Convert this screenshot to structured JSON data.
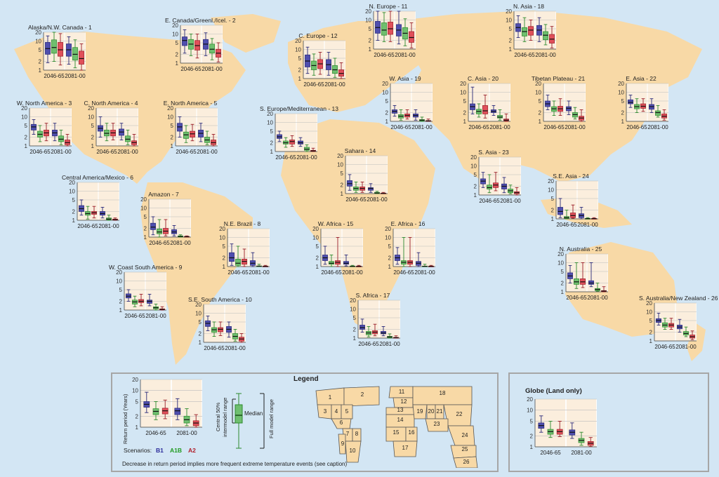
{
  "colors": {
    "B1": "#4f4fae",
    "A1B": "#6fbf6f",
    "A2": "#e0505a",
    "B1_line": "#2a2a7a",
    "A1B_line": "#2e8a2e",
    "A2_line": "#9a1e28",
    "land": "#f8d9a6",
    "sea": "#d3e6f4",
    "band": "#fbeedd"
  },
  "y_ticks": [
    "20",
    "10",
    "5",
    "2",
    "1"
  ],
  "periods": [
    "2046-65",
    "2081-00"
  ],
  "regions": [
    {
      "id": 1,
      "name": "Alaska/N.W. Canada - 1",
      "boxes": [
        [
          1.8,
          3.5,
          5.5,
          9,
          15
        ],
        [
          2,
          3.8,
          6,
          11,
          20
        ],
        [
          1.5,
          3,
          5,
          9,
          18
        ],
        [
          1.6,
          3,
          5,
          8,
          14
        ],
        [
          1.2,
          2.2,
          3.5,
          6,
          11
        ],
        [
          1,
          1.6,
          2.5,
          4.5,
          8
        ]
      ]
    },
    {
      "id": 2,
      "name": "E. Canada/Greenl./Icel. - 2",
      "boxes": [
        [
          2.2,
          4,
          6,
          8,
          14
        ],
        [
          1.8,
          3,
          4.5,
          6.5,
          10
        ],
        [
          1.5,
          2.8,
          4,
          6,
          10
        ],
        [
          1.8,
          3,
          4.5,
          6.5,
          11
        ],
        [
          1.3,
          2.2,
          3,
          4.5,
          7
        ],
        [
          1.1,
          1.6,
          2.2,
          3,
          5
        ]
      ]
    },
    {
      "id": 3,
      "name": "W. North America - 3",
      "boxes": [
        [
          2.5,
          3.5,
          4.5,
          5.5,
          8
        ],
        [
          1.4,
          2,
          2.5,
          3.2,
          5
        ],
        [
          1.5,
          2.2,
          2.8,
          3.5,
          6
        ],
        [
          1.5,
          2.2,
          2.8,
          3.5,
          6
        ],
        [
          1.1,
          1.4,
          1.7,
          2.2,
          3.5
        ],
        [
          1,
          1.1,
          1.3,
          1.6,
          2.5
        ]
      ]
    },
    {
      "id": 4,
      "name": "C. North America - 4",
      "boxes": [
        [
          2,
          3.2,
          4,
          5,
          10
        ],
        [
          1.5,
          2.2,
          2.7,
          3.5,
          6
        ],
        [
          1.6,
          2.2,
          2.8,
          3.5,
          6
        ],
        [
          1.6,
          2.3,
          3,
          3.8,
          6
        ],
        [
          1.1,
          1.4,
          1.7,
          2.2,
          3.5
        ],
        [
          1,
          1.1,
          1.3,
          1.5,
          2.5
        ]
      ]
    },
    {
      "id": 5,
      "name": "E. North America - 5",
      "boxes": [
        [
          2,
          3.2,
          4.5,
          6,
          10
        ],
        [
          1.3,
          1.8,
          2.4,
          3,
          5
        ],
        [
          1.5,
          2,
          2.6,
          3.2,
          5.5
        ],
        [
          1.4,
          2,
          2.7,
          3.5,
          6
        ],
        [
          1.1,
          1.3,
          1.6,
          2,
          3.2
        ],
        [
          1,
          1.1,
          1.3,
          1.6,
          2.5
        ]
      ]
    },
    {
      "id": 6,
      "name": "Central America/Mexico - 6",
      "boxes": [
        [
          1.5,
          2,
          2.5,
          3.2,
          5
        ],
        [
          1.1,
          1.5,
          1.7,
          2,
          3
        ],
        [
          1.2,
          1.6,
          1.8,
          2,
          3
        ],
        [
          1.2,
          1.5,
          1.7,
          2,
          2.8
        ],
        [
          1,
          1.05,
          1.1,
          1.2,
          1.5
        ],
        [
          1,
          1.02,
          1.05,
          1.1,
          1.2
        ]
      ]
    },
    {
      "id": 7,
      "name": "Amazon - 7",
      "boxes": [
        [
          1.2,
          1.8,
          2.2,
          3,
          5
        ],
        [
          1,
          1.3,
          1.5,
          1.9,
          4
        ],
        [
          1.1,
          1.3,
          1.6,
          2,
          4
        ],
        [
          1.1,
          1.3,
          1.5,
          1.8,
          2.5
        ],
        [
          1,
          1.02,
          1.05,
          1.1,
          1.2
        ],
        [
          1,
          1.01,
          1.03,
          1.05,
          1.1
        ]
      ]
    },
    {
      "id": 8,
      "name": "N.E. Brazil - 8",
      "boxes": [
        [
          1.1,
          1.5,
          2,
          3,
          6
        ],
        [
          1,
          1.1,
          1.3,
          1.8,
          5
        ],
        [
          1,
          1.2,
          1.5,
          1.8,
          4
        ],
        [
          1,
          1.1,
          1.3,
          1.6,
          3
        ],
        [
          1,
          1.01,
          1.03,
          1.05,
          1.2
        ],
        [
          1,
          1.01,
          1.02,
          1.03,
          1.1
        ]
      ]
    },
    {
      "id": 9,
      "name": "W. Coast South America - 9",
      "boxes": [
        [
          2,
          2.6,
          3,
          3.6,
          5
        ],
        [
          1.3,
          1.6,
          1.9,
          2.2,
          3
        ],
        [
          1.4,
          1.8,
          2,
          2.3,
          3.5
        ],
        [
          1.4,
          1.7,
          2,
          2.2,
          3.5
        ],
        [
          1,
          1.1,
          1.2,
          1.3,
          1.6
        ],
        [
          1,
          1.02,
          1.05,
          1.1,
          1.3
        ]
      ]
    },
    {
      "id": 10,
      "name": "S.E. South America - 10",
      "boxes": [
        [
          2.5,
          3.5,
          4.5,
          5.5,
          8
        ],
        [
          1.6,
          2.2,
          2.7,
          3.2,
          5
        ],
        [
          1.7,
          2.3,
          2.8,
          3.2,
          5
        ],
        [
          1.5,
          2.2,
          2.8,
          3.5,
          5
        ],
        [
          1.1,
          1.3,
          1.6,
          2,
          2.8
        ],
        [
          1,
          1.1,
          1.3,
          1.5,
          2
        ]
      ]
    },
    {
      "id": 11,
      "name": "N. Europe - 11",
      "boxes": [
        [
          2,
          3.5,
          5.5,
          9,
          20
        ],
        [
          1.8,
          3,
          4.5,
          8,
          18
        ],
        [
          1.8,
          3.2,
          5,
          8.5,
          20
        ],
        [
          1.5,
          2.8,
          4.5,
          7,
          20
        ],
        [
          1.3,
          2.2,
          3.5,
          5.5,
          11
        ],
        [
          1.1,
          1.7,
          2.5,
          4,
          8
        ]
      ]
    },
    {
      "id": 12,
      "name": "C. Europe - 12",
      "boxes": [
        [
          1.5,
          2.5,
          4,
          6.5,
          12
        ],
        [
          1.3,
          2,
          2.8,
          4,
          7
        ],
        [
          1.4,
          2.2,
          3.2,
          4.5,
          8
        ],
        [
          1.3,
          2,
          3,
          4.5,
          8
        ],
        [
          1.1,
          1.5,
          2,
          2.8,
          5
        ],
        [
          1,
          1.2,
          1.5,
          2,
          3.5
        ]
      ]
    },
    {
      "id": 13,
      "name": "S. Europe/Mediterranean - 13",
      "boxes": [
        [
          2.2,
          2.8,
          3.2,
          3.8,
          5
        ],
        [
          1.4,
          1.8,
          2,
          2.3,
          3
        ],
        [
          1.5,
          1.8,
          2.2,
          2.5,
          3.5
        ],
        [
          1.5,
          1.8,
          2,
          2.3,
          3
        ],
        [
          1,
          1.1,
          1.2,
          1.4,
          1.7
        ],
        [
          1,
          1.02,
          1.05,
          1.1,
          1.3
        ]
      ]
    },
    {
      "id": 14,
      "name": "Sahara - 14",
      "boxes": [
        [
          1.3,
          1.8,
          2.2,
          2.8,
          4.5
        ],
        [
          1.1,
          1.3,
          1.5,
          1.7,
          2.5
        ],
        [
          1.1,
          1.3,
          1.5,
          1.7,
          2.5
        ],
        [
          1.1,
          1.3,
          1.5,
          1.6,
          2.2
        ],
        [
          1,
          1.02,
          1.05,
          1.1,
          1.2
        ],
        [
          1,
          1.01,
          1.02,
          1.04,
          1.1
        ]
      ]
    },
    {
      "id": 15,
      "name": "W. Africa - 15",
      "boxes": [
        [
          1.2,
          1.6,
          2,
          2.5,
          5
        ],
        [
          1,
          1.2,
          1.3,
          1.5,
          2.5
        ],
        [
          1,
          1.2,
          1.4,
          1.6,
          10
        ],
        [
          1.05,
          1.2,
          1.3,
          1.5,
          2.5
        ],
        [
          1,
          1.01,
          1.02,
          1.04,
          1.1
        ],
        [
          1,
          1.01,
          1.02,
          1.03,
          1.1
        ]
      ]
    },
    {
      "id": 16,
      "name": "E. Africa - 16",
      "boxes": [
        [
          1.2,
          1.6,
          2,
          2.5,
          4.5
        ],
        [
          1,
          1.2,
          1.4,
          1.6,
          10
        ],
        [
          1,
          1.2,
          1.4,
          1.6,
          10
        ],
        [
          1,
          1.1,
          1.3,
          1.5,
          3
        ],
        [
          1,
          1.01,
          1.02,
          1.04,
          1.2
        ],
        [
          1,
          1.01,
          1.02,
          1.03,
          1.1
        ]
      ]
    },
    {
      "id": 17,
      "name": "S. Africa - 17",
      "boxes": [
        [
          1.6,
          2,
          2.3,
          2.8,
          4.5
        ],
        [
          1.1,
          1.3,
          1.5,
          1.7,
          2.5
        ],
        [
          1.2,
          1.4,
          1.6,
          1.8,
          3
        ],
        [
          1.2,
          1.4,
          1.5,
          1.7,
          2.5
        ],
        [
          1,
          1.05,
          1.1,
          1.15,
          1.4
        ],
        [
          1,
          1.02,
          1.04,
          1.06,
          1.2
        ]
      ]
    },
    {
      "id": 18,
      "name": "N. Asia - 18",
      "boxes": [
        [
          2.5,
          4,
          5.5,
          7.5,
          14
        ],
        [
          1.8,
          2.8,
          4,
          5.5,
          12
        ],
        [
          2,
          3,
          4.5,
          6,
          10
        ],
        [
          1.8,
          3,
          4.5,
          6.5,
          12
        ],
        [
          1.4,
          2.1,
          3,
          4,
          7
        ],
        [
          1.1,
          1.6,
          2.2,
          3.2,
          6
        ]
      ]
    },
    {
      "id": 19,
      "name": "W. Asia - 19",
      "boxes": [
        [
          1.5,
          1.9,
          2.2,
          2.5,
          3.5
        ],
        [
          1.1,
          1.3,
          1.5,
          1.7,
          2.5
        ],
        [
          1.2,
          1.4,
          1.6,
          1.8,
          2.5
        ],
        [
          1.1,
          1.4,
          1.6,
          1.8,
          2.5
        ],
        [
          1,
          1.05,
          1.1,
          1.15,
          1.4
        ],
        [
          1,
          1.02,
          1.04,
          1.06,
          1.2
        ]
      ]
    },
    {
      "id": 20,
      "name": "C.  Asia - 20",
      "boxes": [
        [
          1.8,
          2.5,
          3.2,
          4,
          15
        ],
        [
          1.4,
          1.8,
          2.2,
          2.6,
          4
        ],
        [
          1.3,
          1.8,
          2.3,
          3.5,
          8
        ],
        [
          1.6,
          2,
          2.2,
          2.5,
          3.5
        ],
        [
          1.1,
          1.3,
          1.4,
          1.6,
          2.5
        ],
        [
          1,
          1.05,
          1.1,
          1.2,
          1.8
        ]
      ]
    },
    {
      "id": 21,
      "name": "Tibetan Plateau - 21",
      "boxes": [
        [
          2.5,
          3.2,
          4,
          5,
          8
        ],
        [
          1.6,
          2.2,
          2.7,
          3.2,
          5
        ],
        [
          1.6,
          2.2,
          2.7,
          3.3,
          6
        ],
        [
          1.7,
          2.3,
          2.8,
          3.2,
          5
        ],
        [
          1.2,
          1.4,
          1.7,
          2,
          3
        ],
        [
          1,
          1.1,
          1.3,
          1.5,
          2.5
        ]
      ]
    },
    {
      "id": 22,
      "name": "E. Asia - 22",
      "boxes": [
        [
          3,
          4,
          4.5,
          5.5,
          8
        ],
        [
          2,
          2.7,
          3.2,
          3.8,
          6
        ],
        [
          2.2,
          2.8,
          3.3,
          4,
          6
        ],
        [
          2,
          2.6,
          3.2,
          3.8,
          6
        ],
        [
          1.4,
          1.6,
          2,
          2.3,
          3.5
        ],
        [
          1.1,
          1.3,
          1.5,
          1.8,
          2.5
        ]
      ]
    },
    {
      "id": 23,
      "name": "S. Asia - 23",
      "boxes": [
        [
          1.8,
          2.4,
          3,
          3.6,
          6
        ],
        [
          1.2,
          1.6,
          1.8,
          2.2,
          5
        ],
        [
          1.4,
          1.8,
          2.2,
          2.6,
          6
        ],
        [
          1.2,
          1.6,
          2,
          2.4,
          4
        ],
        [
          1.1,
          1.2,
          1.4,
          1.6,
          2.2
        ],
        [
          1,
          1.1,
          1.2,
          1.3,
          1.8
        ]
      ]
    },
    {
      "id": 24,
      "name": "S.E. Asia - 24",
      "boxes": [
        [
          1.1,
          1.4,
          1.8,
          2.5,
          5
        ],
        [
          1,
          1.05,
          1.1,
          1.2,
          2
        ],
        [
          1.05,
          1.1,
          1.3,
          1.6,
          3
        ],
        [
          1,
          1.1,
          1.3,
          1.5,
          2.5
        ],
        [
          1,
          1.01,
          1.02,
          1.03,
          1.1
        ],
        [
          1,
          1.01,
          1.02,
          1.03,
          1.1
        ]
      ]
    },
    {
      "id": 25,
      "name": "N. Australia - 25",
      "boxes": [
        [
          2,
          2.8,
          3.5,
          4.5,
          8
        ],
        [
          1.3,
          1.8,
          2.2,
          2.8,
          10
        ],
        [
          1.4,
          1.8,
          2.2,
          2.8,
          10
        ],
        [
          1.5,
          1.8,
          2,
          2.4,
          10
        ],
        [
          1.05,
          1.1,
          1.2,
          1.3,
          2
        ],
        [
          1,
          1.03,
          1.06,
          1.1,
          1.5
        ]
      ]
    },
    {
      "id": 26,
      "name": "S. Australia/New Zealand - 26",
      "boxes": [
        [
          3.5,
          4.3,
          5,
          5.8,
          9
        ],
        [
          2.5,
          3,
          3.5,
          4.2,
          6
        ],
        [
          2.5,
          3,
          3.5,
          4,
          6
        ],
        [
          2,
          2.6,
          3,
          3.5,
          5.5
        ],
        [
          1.4,
          1.6,
          1.8,
          2.1,
          3
        ],
        [
          1.1,
          1.25,
          1.4,
          1.6,
          2.2
        ]
      ]
    }
  ],
  "legend": {
    "title": "Legend",
    "ylabel": "Return period (Years)",
    "central": "Central 50%",
    "intermodel": "intermodel range",
    "median": "Median",
    "full": "Full model range",
    "scenarios_label": "Scenarios:",
    "B1": "B1",
    "A1B": "A1B",
    "A2": "A2",
    "caption": "Decrease in return period implies more frequent extreme temperature events (see caption)",
    "example_boxes": [
      [
        2.5,
        3.5,
        4.2,
        5,
        9
      ],
      [
        1.6,
        2.2,
        2.7,
        3.2,
        5
      ],
      [
        1.7,
        2.3,
        2.8,
        3.3,
        5.5
      ],
      [
        1.6,
        2.2,
        2.8,
        3.3,
        6
      ],
      [
        1.1,
        1.3,
        1.6,
        2,
        3.2
      ],
      [
        1,
        1.1,
        1.3,
        1.5,
        2.2
      ]
    ],
    "map_numbers": [
      "1",
      "2",
      "3",
      "4",
      "5",
      "6",
      "7",
      "8",
      "9",
      "10",
      "11",
      "12",
      "13",
      "14",
      "15",
      "16",
      "17",
      "18",
      "19",
      "20",
      "21",
      "22",
      "23",
      "24",
      "25",
      "26"
    ]
  },
  "globe": {
    "title": "Globe (Land only)",
    "boxes": [
      [
        2.5,
        3.2,
        3.8,
        4.5,
        7
      ],
      [
        1.8,
        2.2,
        2.6,
        3,
        5
      ],
      [
        1.9,
        2.2,
        2.6,
        3,
        5
      ],
      [
        1.7,
        2.1,
        2.5,
        2.9,
        4.5
      ],
      [
        1.1,
        1.3,
        1.5,
        1.7,
        2.5
      ],
      [
        1.02,
        1.1,
        1.25,
        1.4,
        1.8
      ]
    ]
  }
}
